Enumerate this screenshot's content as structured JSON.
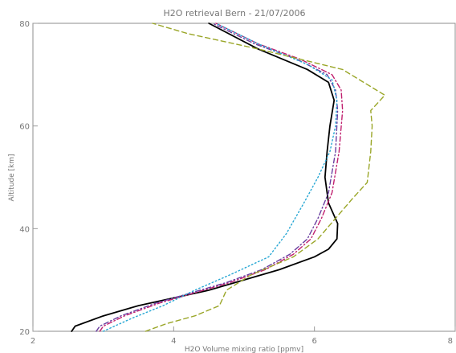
{
  "chart_data": {
    "type": "line",
    "title": "H2O retrieval Bern - 21/07/2006",
    "xlabel": "H2O Volume mixing ratio [ppmv]",
    "ylabel": "Altitude [km]",
    "xlim": [
      2,
      8
    ],
    "ylim": [
      20,
      80
    ],
    "xticks": [
      "2",
      "4",
      "6",
      "8"
    ],
    "yticks": [
      "20",
      "40",
      "60",
      "80"
    ],
    "grid": false,
    "series": [
      {
        "color": "#000000",
        "style": "solid",
        "points": [
          [
            2.55,
            20
          ],
          [
            2.6,
            21
          ],
          [
            3.0,
            23
          ],
          [
            3.5,
            25
          ],
          [
            4.0,
            26.5
          ],
          [
            4.5,
            28
          ],
          [
            5.0,
            30
          ],
          [
            5.5,
            32
          ],
          [
            6.0,
            34.5
          ],
          [
            6.2,
            36
          ],
          [
            6.32,
            38
          ],
          [
            6.33,
            41
          ],
          [
            6.2,
            45
          ],
          [
            6.15,
            50
          ],
          [
            6.18,
            55
          ],
          [
            6.22,
            60
          ],
          [
            6.28,
            65
          ],
          [
            6.2,
            68.5
          ],
          [
            5.9,
            71
          ],
          [
            5.2,
            75
          ],
          [
            4.5,
            80
          ]
        ]
      },
      {
        "color": "#c0206f",
        "style": "dashdot",
        "points": [
          [
            2.95,
            20
          ],
          [
            3.0,
            21
          ],
          [
            3.3,
            23
          ],
          [
            3.8,
            25.5
          ],
          [
            4.3,
            27.5
          ],
          [
            4.8,
            29.5
          ],
          [
            5.3,
            32
          ],
          [
            5.7,
            35
          ],
          [
            5.95,
            38
          ],
          [
            6.1,
            42
          ],
          [
            6.25,
            47
          ],
          [
            6.35,
            55
          ],
          [
            6.4,
            63
          ],
          [
            6.38,
            67
          ],
          [
            6.25,
            70
          ],
          [
            5.8,
            73
          ],
          [
            5.2,
            76
          ],
          [
            4.6,
            80
          ]
        ]
      },
      {
        "color": "#6a3fa0",
        "style": "dashdot",
        "points": [
          [
            2.9,
            20
          ],
          [
            2.95,
            21
          ],
          [
            3.25,
            23
          ],
          [
            3.75,
            25.5
          ],
          [
            4.25,
            27.5
          ],
          [
            4.75,
            29.5
          ],
          [
            5.25,
            32
          ],
          [
            5.65,
            35
          ],
          [
            5.9,
            38
          ],
          [
            6.05,
            42
          ],
          [
            6.2,
            47
          ],
          [
            6.3,
            55
          ],
          [
            6.33,
            63
          ],
          [
            6.3,
            67
          ],
          [
            6.18,
            70
          ],
          [
            5.75,
            73
          ],
          [
            5.15,
            76
          ],
          [
            4.55,
            80
          ]
        ]
      },
      {
        "color": "#27a7d4",
        "style": "dotted",
        "points": [
          [
            3.0,
            20
          ],
          [
            3.4,
            22.5
          ],
          [
            3.85,
            25
          ],
          [
            4.3,
            28
          ],
          [
            4.8,
            31
          ],
          [
            5.35,
            34.5
          ],
          [
            5.6,
            39
          ],
          [
            5.85,
            45
          ],
          [
            6.05,
            50
          ],
          [
            6.22,
            55
          ],
          [
            6.3,
            60
          ],
          [
            6.32,
            65
          ],
          [
            6.25,
            69
          ],
          [
            5.9,
            72
          ],
          [
            5.2,
            76
          ],
          [
            4.6,
            80
          ]
        ]
      },
      {
        "color": "#9aa628",
        "style": "dashed",
        "points": [
          [
            3.6,
            20
          ],
          [
            3.9,
            21.5
          ],
          [
            4.3,
            23
          ],
          [
            4.65,
            25
          ],
          [
            4.75,
            28
          ],
          [
            5.1,
            31
          ],
          [
            5.7,
            34.5
          ],
          [
            6.05,
            38
          ],
          [
            6.3,
            42
          ],
          [
            6.55,
            46
          ],
          [
            6.75,
            49
          ],
          [
            6.8,
            55
          ],
          [
            6.82,
            60
          ],
          [
            6.8,
            63
          ],
          [
            7.0,
            66
          ],
          [
            6.4,
            71
          ],
          [
            5.2,
            75
          ],
          [
            4.2,
            78
          ],
          [
            3.7,
            80
          ]
        ]
      }
    ]
  }
}
